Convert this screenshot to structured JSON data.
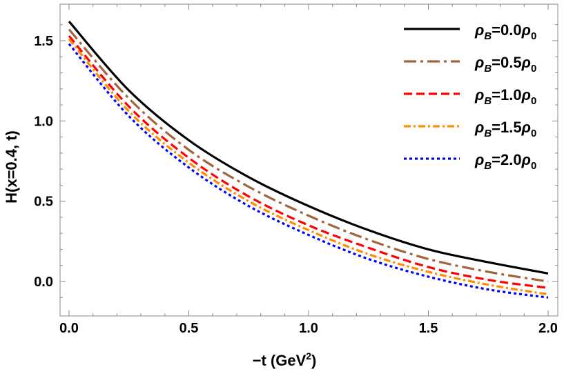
{
  "chart_data": {
    "type": "line",
    "title": "",
    "xlabel_main": "−t (GeV",
    "xlabel_sup": "2",
    "xlabel_end": ")",
    "ylabel": "H(x=0.4, t)",
    "xlim": [
      0.0,
      2.0
    ],
    "ylim": [
      -0.15,
      1.67
    ],
    "xticks": [
      0.0,
      0.5,
      1.0,
      1.5,
      2.0
    ],
    "xtick_labels": [
      "0.0",
      "0.5",
      "1.0",
      "1.5",
      "2.0"
    ],
    "yticks": [
      0.0,
      0.5,
      1.0,
      1.5
    ],
    "ytick_labels": [
      "0.0",
      "0.5",
      "1.0",
      "1.5"
    ],
    "grid": false,
    "legend_position": "top-right",
    "x": [
      0.0,
      0.25,
      0.5,
      0.75,
      1.0,
      1.25,
      1.5,
      1.75,
      2.0
    ],
    "series": [
      {
        "legend": {
          "sym": "ρ",
          "sub": "B",
          "val": "=0.0",
          "sym2": "ρ",
          "sub2": "0"
        },
        "color": "#000000",
        "dash": "",
        "width": 3.2,
        "values": [
          1.62,
          1.19,
          0.88,
          0.65,
          0.47,
          0.32,
          0.2,
          0.12,
          0.05
        ]
      },
      {
        "legend": {
          "sym": "ρ",
          "sub": "B",
          "val": "=0.5",
          "sym2": "ρ",
          "sub2": "0"
        },
        "color": "#a0653a",
        "dash": "18,6,4,6",
        "width": 3.2,
        "values": [
          1.57,
          1.14,
          0.82,
          0.59,
          0.41,
          0.26,
          0.14,
          0.06,
          0.0
        ]
      },
      {
        "legend": {
          "sym": "ρ",
          "sub": "B",
          "val": "=1.0",
          "sym2": "ρ",
          "sub2": "0"
        },
        "color": "#ff0000",
        "dash": "12,6",
        "width": 3.2,
        "values": [
          1.53,
          1.09,
          0.77,
          0.53,
          0.35,
          0.21,
          0.09,
          0.01,
          -0.04
        ]
      },
      {
        "legend": {
          "sym": "ρ",
          "sub": "B",
          "val": "=1.5",
          "sym2": "ρ",
          "sub2": "0"
        },
        "color": "#ff8c00",
        "dash": "10,4,3,4",
        "width": 3.2,
        "values": [
          1.51,
          1.06,
          0.74,
          0.5,
          0.32,
          0.17,
          0.06,
          -0.02,
          -0.08
        ]
      },
      {
        "legend": {
          "sym": "ρ",
          "sub": "B",
          "val": "=2.0",
          "sym2": "ρ",
          "sub2": "0"
        },
        "color": "#0000ff",
        "dash": "4,4",
        "width": 3.2,
        "values": [
          1.48,
          1.03,
          0.71,
          0.47,
          0.29,
          0.14,
          0.03,
          -0.05,
          -0.1
        ]
      }
    ]
  }
}
